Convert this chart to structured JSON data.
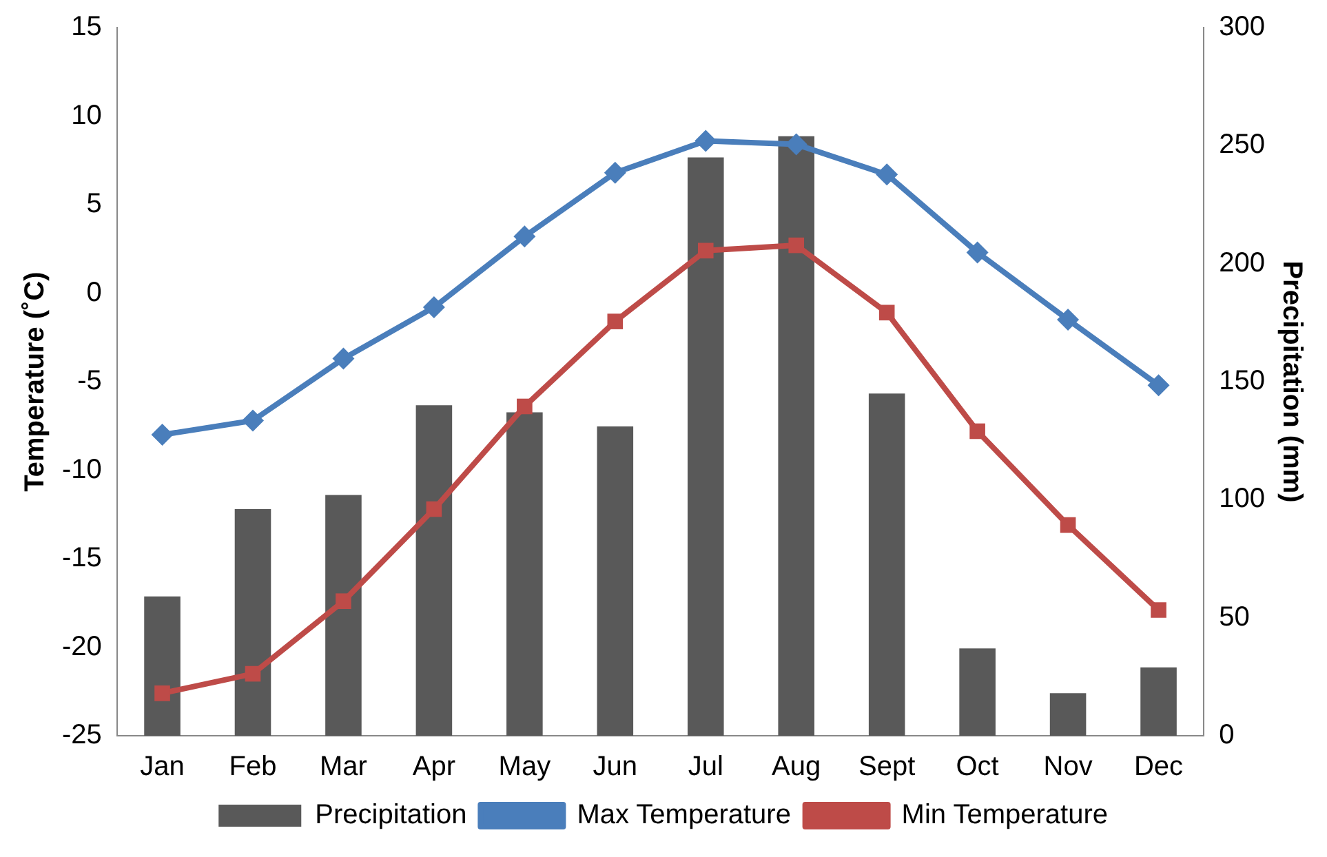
{
  "chart_data": {
    "type": "bar",
    "categories": [
      "Jan",
      "Feb",
      "Mar",
      "Apr",
      "May",
      "Jun",
      "Jul",
      "Aug",
      "Sept",
      "Oct",
      "Nov",
      "Dec"
    ],
    "series": [
      {
        "name": "Precipitation",
        "axis": "y2",
        "color": "#595959",
        "values": [
          59,
          96,
          102,
          140,
          137,
          131,
          245,
          254,
          145,
          37,
          18,
          29
        ]
      },
      {
        "name": "Max Temperature",
        "type": "line",
        "color": "#4a7ebb",
        "marker": "diamond",
        "values": [
          -8.0,
          -7.2,
          -3.7,
          -0.8,
          3.2,
          6.8,
          8.6,
          8.4,
          6.7,
          2.3,
          -1.5,
          -5.2
        ]
      },
      {
        "name": "Min Temperature",
        "type": "line",
        "color": "#be4b48",
        "marker": "square",
        "values": [
          -22.6,
          -21.5,
          -17.4,
          -12.2,
          -6.4,
          -1.6,
          2.4,
          2.7,
          -1.1,
          -7.8,
          -13.1,
          -17.9
        ]
      }
    ],
    "ylabel": "Temperature (˚C)",
    "y2label": "Precipitation (mm)",
    "ylim": [
      -25,
      15
    ],
    "yticks": [
      -25,
      -20,
      -15,
      -10,
      -5,
      0,
      5,
      10,
      15
    ],
    "y2lim": [
      0,
      300
    ],
    "y2ticks": [
      0,
      50,
      100,
      150,
      200,
      250,
      300
    ],
    "grid": false,
    "legend": "bottom"
  }
}
